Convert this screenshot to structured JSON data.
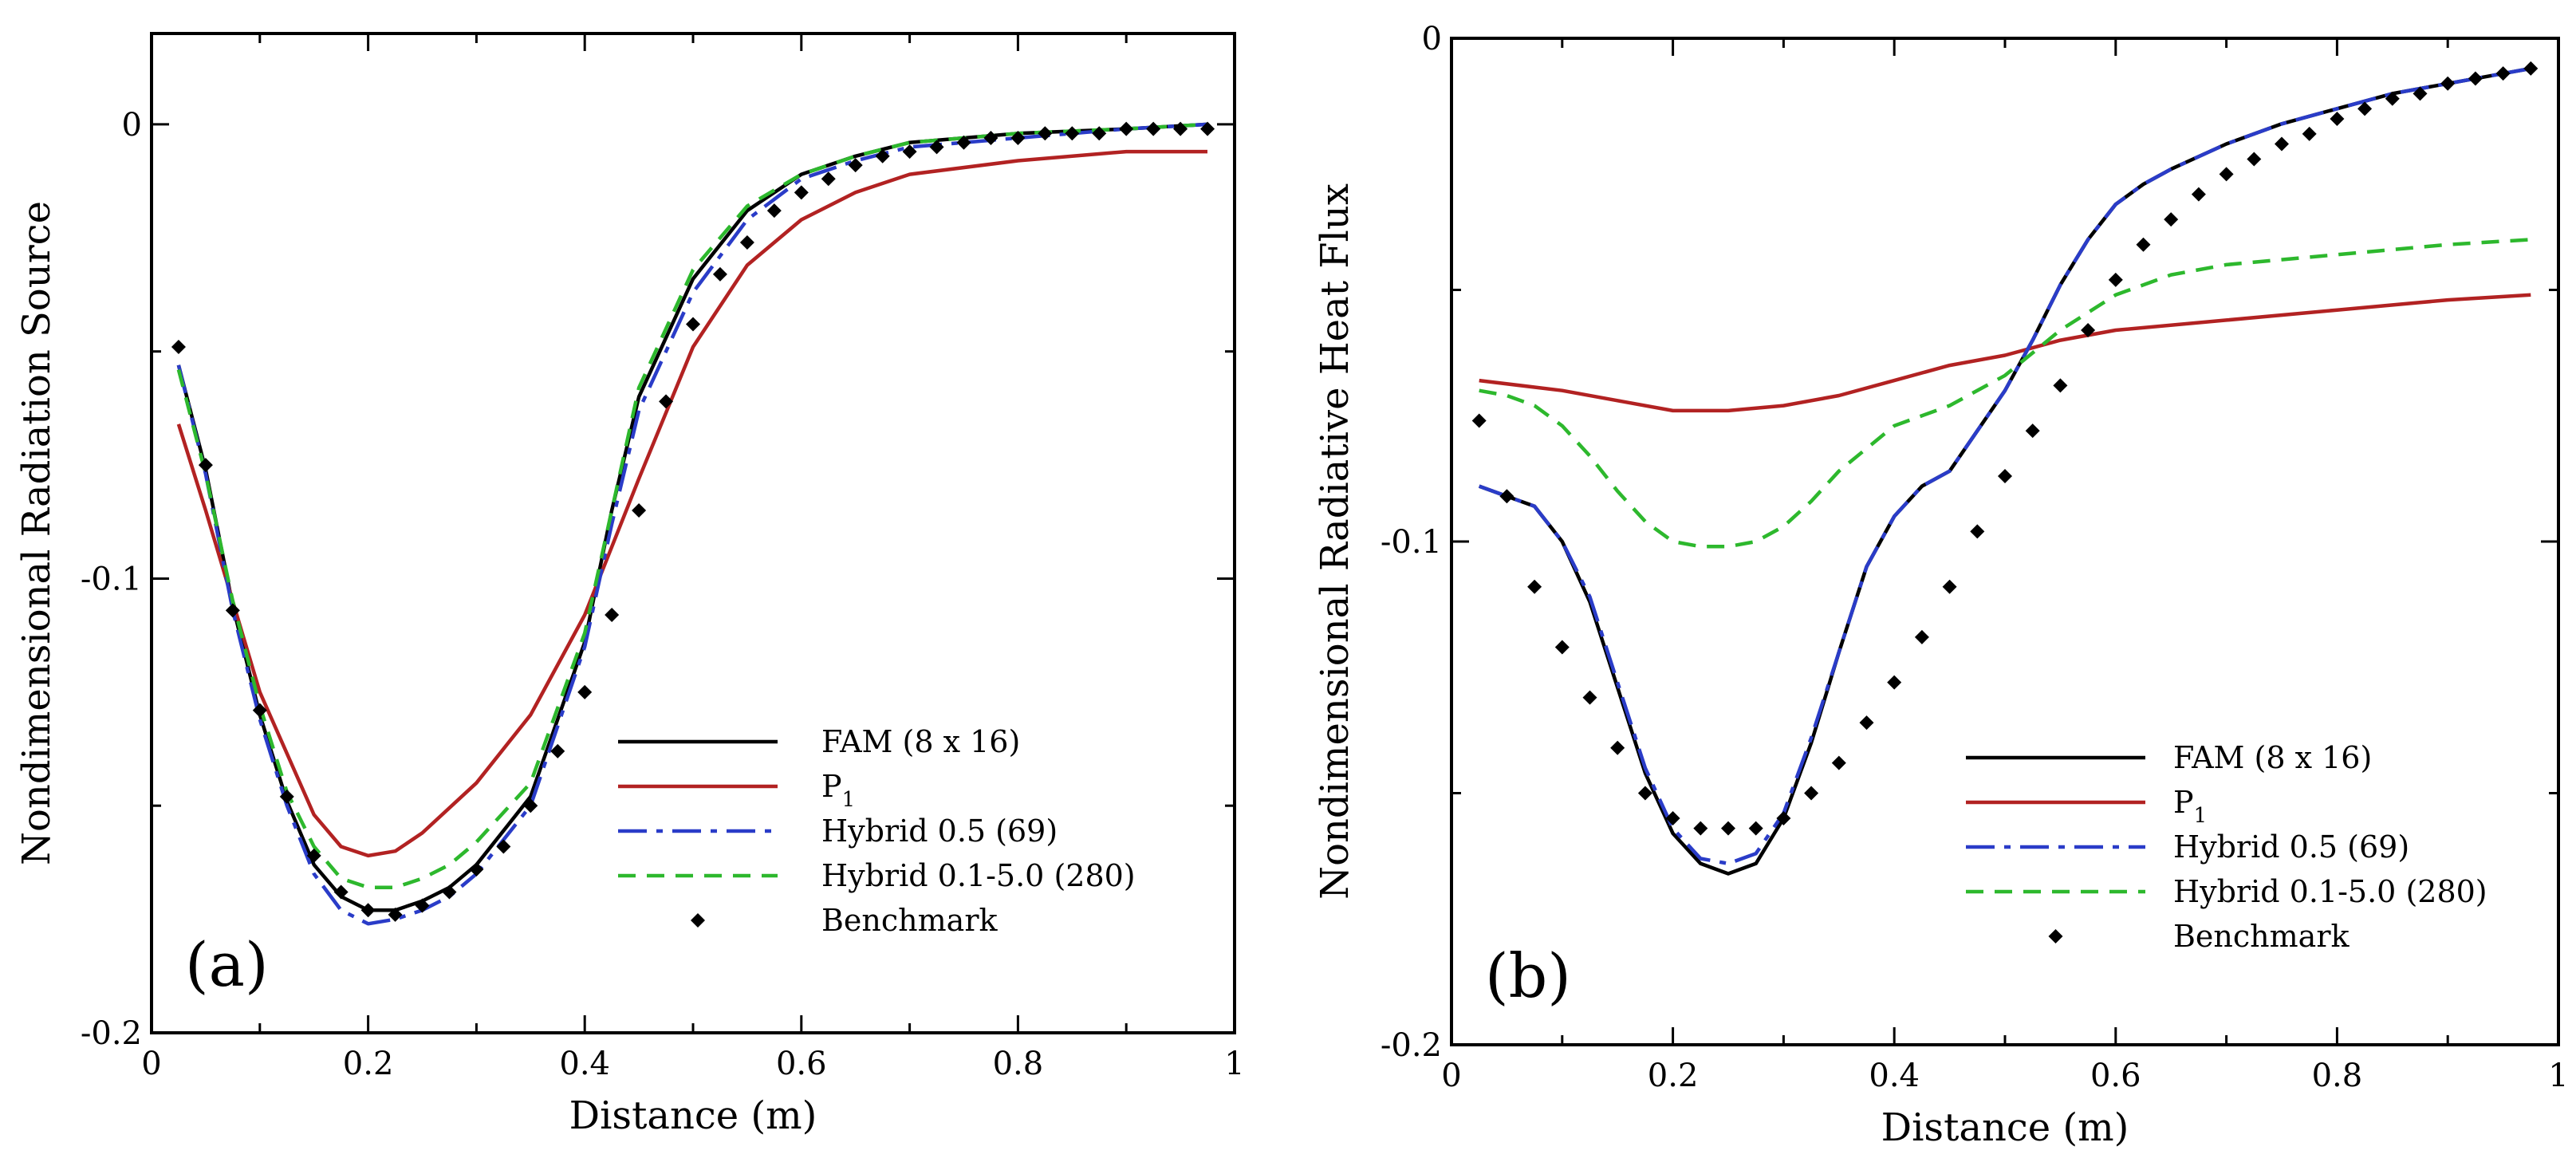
{
  "chart_data": [
    {
      "type": "line",
      "panel_label": "(a)",
      "xlabel": "Distance (m)",
      "ylabel": "Nondimensional Radiation Source",
      "xlim": [
        0,
        1
      ],
      "ylim": [
        -0.2,
        0.02
      ],
      "xticks": [
        0,
        0.2,
        0.4,
        0.6,
        0.8,
        1
      ],
      "xtick_labels": [
        "0",
        "0.2",
        "0.4",
        "0.6",
        "0.8",
        "1"
      ],
      "yticks": [
        -0.2,
        -0.1,
        0
      ],
      "ytick_labels": [
        "-0.2",
        "-0.1",
        "0"
      ],
      "legend_position": "bottom-right",
      "series": [
        {
          "name": "FAM (8 x 16)",
          "style": "solid",
          "color": "#000000",
          "x": [
            0.025,
            0.05,
            0.075,
            0.1,
            0.125,
            0.15,
            0.175,
            0.2,
            0.225,
            0.25,
            0.275,
            0.3,
            0.35,
            0.4,
            0.425,
            0.45,
            0.5,
            0.55,
            0.6,
            0.65,
            0.7,
            0.8,
            0.9,
            0.975
          ],
          "y": [
            -0.053,
            -0.076,
            -0.106,
            -0.13,
            -0.149,
            -0.163,
            -0.17,
            -0.173,
            -0.173,
            -0.171,
            -0.168,
            -0.163,
            -0.148,
            -0.114,
            -0.085,
            -0.06,
            -0.034,
            -0.019,
            -0.011,
            -0.007,
            -0.004,
            -0.002,
            -0.001,
            0.0
          ]
        },
        {
          "name": "P1",
          "label_main": "P",
          "label_sub": "1",
          "style": "solid",
          "color": "#b22222",
          "x": [
            0.025,
            0.05,
            0.1,
            0.15,
            0.175,
            0.2,
            0.225,
            0.25,
            0.3,
            0.35,
            0.4,
            0.45,
            0.5,
            0.55,
            0.6,
            0.65,
            0.7,
            0.8,
            0.9,
            0.975
          ],
          "y": [
            -0.066,
            -0.085,
            -0.125,
            -0.152,
            -0.159,
            -0.161,
            -0.16,
            -0.156,
            -0.145,
            -0.13,
            -0.108,
            -0.078,
            -0.049,
            -0.031,
            -0.021,
            -0.015,
            -0.011,
            -0.008,
            -0.006,
            -0.006
          ]
        },
        {
          "name": "Hybrid 0.5 (69)",
          "style": "dashdot",
          "color": "#2a3cc8",
          "x": [
            0.025,
            0.05,
            0.075,
            0.1,
            0.125,
            0.15,
            0.175,
            0.2,
            0.225,
            0.25,
            0.275,
            0.3,
            0.35,
            0.4,
            0.425,
            0.45,
            0.5,
            0.55,
            0.6,
            0.65,
            0.7,
            0.8,
            0.9,
            0.975
          ],
          "y": [
            -0.053,
            -0.077,
            -0.107,
            -0.131,
            -0.15,
            -0.165,
            -0.173,
            -0.176,
            -0.175,
            -0.173,
            -0.17,
            -0.165,
            -0.15,
            -0.115,
            -0.088,
            -0.063,
            -0.037,
            -0.021,
            -0.012,
            -0.008,
            -0.005,
            -0.003,
            -0.001,
            0.0
          ]
        },
        {
          "name": "Hybrid 0.1-5.0 (280)",
          "style": "dashed",
          "color": "#2db82d",
          "x": [
            0.025,
            0.05,
            0.075,
            0.1,
            0.125,
            0.15,
            0.175,
            0.2,
            0.225,
            0.25,
            0.275,
            0.3,
            0.35,
            0.4,
            0.425,
            0.45,
            0.5,
            0.55,
            0.6,
            0.65,
            0.7,
            0.8,
            0.9,
            0.975
          ],
          "y": [
            -0.054,
            -0.077,
            -0.105,
            -0.128,
            -0.147,
            -0.159,
            -0.166,
            -0.168,
            -0.168,
            -0.166,
            -0.163,
            -0.158,
            -0.145,
            -0.112,
            -0.085,
            -0.058,
            -0.032,
            -0.018,
            -0.011,
            -0.007,
            -0.004,
            -0.002,
            -0.001,
            0.0
          ]
        },
        {
          "name": "Benchmark",
          "style": "markers",
          "color": "#000000",
          "x": [
            0.025,
            0.05,
            0.075,
            0.1,
            0.125,
            0.15,
            0.175,
            0.2,
            0.225,
            0.25,
            0.275,
            0.3,
            0.325,
            0.35,
            0.375,
            0.4,
            0.425,
            0.45,
            0.475,
            0.5,
            0.525,
            0.55,
            0.575,
            0.6,
            0.625,
            0.65,
            0.675,
            0.7,
            0.725,
            0.75,
            0.775,
            0.8,
            0.825,
            0.85,
            0.875,
            0.9,
            0.925,
            0.95,
            0.975
          ],
          "y": [
            -0.049,
            -0.075,
            -0.107,
            -0.129,
            -0.148,
            -0.161,
            -0.169,
            -0.173,
            -0.174,
            -0.172,
            -0.169,
            -0.164,
            -0.159,
            -0.15,
            -0.138,
            -0.125,
            -0.108,
            -0.085,
            -0.061,
            -0.044,
            -0.033,
            -0.026,
            -0.019,
            -0.015,
            -0.012,
            -0.009,
            -0.007,
            -0.006,
            -0.005,
            -0.004,
            -0.003,
            -0.003,
            -0.002,
            -0.002,
            -0.002,
            -0.001,
            -0.001,
            -0.001,
            -0.001
          ]
        }
      ]
    },
    {
      "type": "line",
      "panel_label": "(b)",
      "xlabel": "Distance (m)",
      "ylabel": "Nondimensional Radiative Heat Flux",
      "xlim": [
        0,
        1
      ],
      "ylim": [
        -0.2,
        0.0
      ],
      "xticks": [
        0,
        0.2,
        0.4,
        0.6,
        0.8,
        1
      ],
      "xtick_labels": [
        "0",
        "0.2",
        "0.4",
        "0.6",
        "0.8",
        "1"
      ],
      "yticks": [
        -0.2,
        -0.1,
        0
      ],
      "ytick_labels": [
        "-0.2",
        "-0.1",
        "0"
      ],
      "legend_position": "bottom-right",
      "series": [
        {
          "name": "FAM (8 x 16)",
          "style": "solid",
          "color": "#000000",
          "x": [
            0.025,
            0.05,
            0.075,
            0.1,
            0.125,
            0.15,
            0.175,
            0.2,
            0.225,
            0.25,
            0.275,
            0.3,
            0.325,
            0.35,
            0.375,
            0.4,
            0.425,
            0.45,
            0.475,
            0.5,
            0.525,
            0.55,
            0.575,
            0.6,
            0.625,
            0.65,
            0.7,
            0.75,
            0.8,
            0.85,
            0.9,
            0.95,
            0.975
          ],
          "y": [
            -0.089,
            -0.091,
            -0.093,
            -0.1,
            -0.112,
            -0.129,
            -0.146,
            -0.158,
            -0.164,
            -0.166,
            -0.164,
            -0.155,
            -0.14,
            -0.122,
            -0.105,
            -0.095,
            -0.089,
            -0.086,
            -0.078,
            -0.07,
            -0.06,
            -0.049,
            -0.04,
            -0.033,
            -0.029,
            -0.026,
            -0.021,
            -0.017,
            -0.014,
            -0.011,
            -0.009,
            -0.007,
            -0.006
          ]
        },
        {
          "name": "P1",
          "label_main": "P",
          "label_sub": "1",
          "style": "solid",
          "color": "#b22222",
          "x": [
            0.025,
            0.1,
            0.15,
            0.2,
            0.25,
            0.3,
            0.35,
            0.4,
            0.45,
            0.5,
            0.55,
            0.6,
            0.7,
            0.8,
            0.9,
            0.975
          ],
          "y": [
            -0.068,
            -0.07,
            -0.072,
            -0.074,
            -0.074,
            -0.073,
            -0.071,
            -0.068,
            -0.065,
            -0.063,
            -0.06,
            -0.058,
            -0.056,
            -0.054,
            -0.052,
            -0.051
          ]
        },
        {
          "name": "Hybrid 0.5 (69)",
          "style": "dashdot",
          "color": "#2a3cc8",
          "x": [
            0.025,
            0.05,
            0.075,
            0.1,
            0.125,
            0.15,
            0.175,
            0.2,
            0.225,
            0.25,
            0.275,
            0.3,
            0.325,
            0.35,
            0.375,
            0.4,
            0.425,
            0.45,
            0.475,
            0.5,
            0.525,
            0.55,
            0.575,
            0.6,
            0.625,
            0.65,
            0.7,
            0.75,
            0.8,
            0.85,
            0.9,
            0.95,
            0.975
          ],
          "y": [
            -0.089,
            -0.091,
            -0.093,
            -0.1,
            -0.111,
            -0.128,
            -0.145,
            -0.157,
            -0.163,
            -0.164,
            -0.162,
            -0.154,
            -0.139,
            -0.122,
            -0.105,
            -0.095,
            -0.089,
            -0.086,
            -0.078,
            -0.07,
            -0.06,
            -0.049,
            -0.04,
            -0.033,
            -0.029,
            -0.026,
            -0.021,
            -0.017,
            -0.014,
            -0.011,
            -0.009,
            -0.007,
            -0.006
          ]
        },
        {
          "name": "Hybrid 0.1-5.0 (280)",
          "style": "dashed",
          "color": "#2db82d",
          "x": [
            0.025,
            0.05,
            0.075,
            0.1,
            0.125,
            0.15,
            0.175,
            0.2,
            0.225,
            0.25,
            0.275,
            0.3,
            0.325,
            0.35,
            0.4,
            0.45,
            0.5,
            0.55,
            0.6,
            0.65,
            0.7,
            0.8,
            0.9,
            0.975
          ],
          "y": [
            -0.07,
            -0.071,
            -0.073,
            -0.077,
            -0.083,
            -0.09,
            -0.096,
            -0.1,
            -0.101,
            -0.101,
            -0.1,
            -0.097,
            -0.092,
            -0.086,
            -0.077,
            -0.073,
            -0.067,
            -0.058,
            -0.051,
            -0.047,
            -0.045,
            -0.043,
            -0.041,
            -0.04
          ]
        },
        {
          "name": "Benchmark",
          "style": "markers",
          "color": "#000000",
          "x": [
            0.025,
            0.05,
            0.075,
            0.1,
            0.125,
            0.15,
            0.175,
            0.2,
            0.225,
            0.25,
            0.275,
            0.3,
            0.325,
            0.35,
            0.375,
            0.4,
            0.425,
            0.45,
            0.475,
            0.5,
            0.525,
            0.55,
            0.575,
            0.6,
            0.625,
            0.65,
            0.675,
            0.7,
            0.725,
            0.75,
            0.775,
            0.8,
            0.825,
            0.85,
            0.875,
            0.9,
            0.925,
            0.95,
            0.975
          ],
          "y": [
            -0.076,
            -0.091,
            -0.109,
            -0.121,
            -0.131,
            -0.141,
            -0.15,
            -0.155,
            -0.157,
            -0.157,
            -0.157,
            -0.155,
            -0.15,
            -0.144,
            -0.136,
            -0.128,
            -0.119,
            -0.109,
            -0.098,
            -0.087,
            -0.078,
            -0.069,
            -0.058,
            -0.048,
            -0.041,
            -0.036,
            -0.031,
            -0.027,
            -0.024,
            -0.021,
            -0.019,
            -0.016,
            -0.014,
            -0.012,
            -0.011,
            -0.009,
            -0.008,
            -0.007,
            -0.006
          ]
        }
      ]
    }
  ]
}
